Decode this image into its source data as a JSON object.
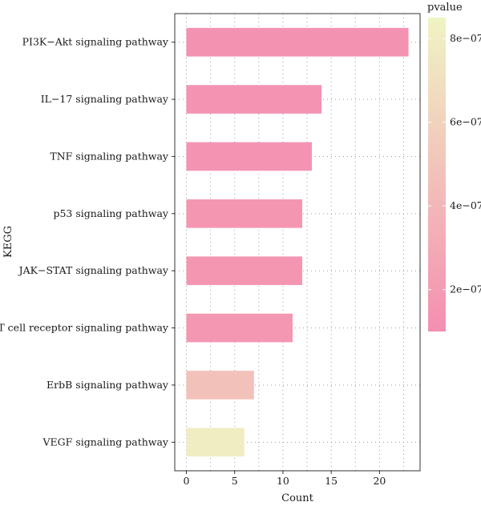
{
  "chart_data": {
    "type": "bar",
    "orientation": "horizontal",
    "xlabel": "Count",
    "ylabel": "KEGG",
    "xlim": [
      -1.2,
      24.2
    ],
    "xticks": [
      0,
      5,
      10,
      15,
      20
    ],
    "grid": "dotted",
    "categories": [
      "PI3K−Akt signaling pathway",
      "IL−17 signaling pathway",
      "TNF signaling pathway",
      "p53 signaling pathway",
      "JAK−STAT signaling pathway",
      "T cell receptor signaling pathway",
      "ErbB signaling pathway",
      "VEGF signaling pathway"
    ],
    "values": [
      23,
      14,
      13,
      12,
      12,
      11,
      7,
      6
    ],
    "pvalue": [
      1.2e-07,
      1.3e-07,
      1.4e-07,
      1.5e-07,
      1.5e-07,
      1.6e-07,
      4.7e-07,
      8e-07
    ],
    "colorbar": {
      "title": "pvalue",
      "range": [
        1e-07,
        8.5e-07
      ],
      "ticks": [
        2e-07,
        4e-07,
        6e-07,
        8e-07
      ],
      "tick_labels": [
        "2e−07",
        "4e−07",
        "6e−07",
        "8e−07"
      ],
      "low_color": "#f48fb1",
      "high_color": "#f0f4c3"
    }
  }
}
